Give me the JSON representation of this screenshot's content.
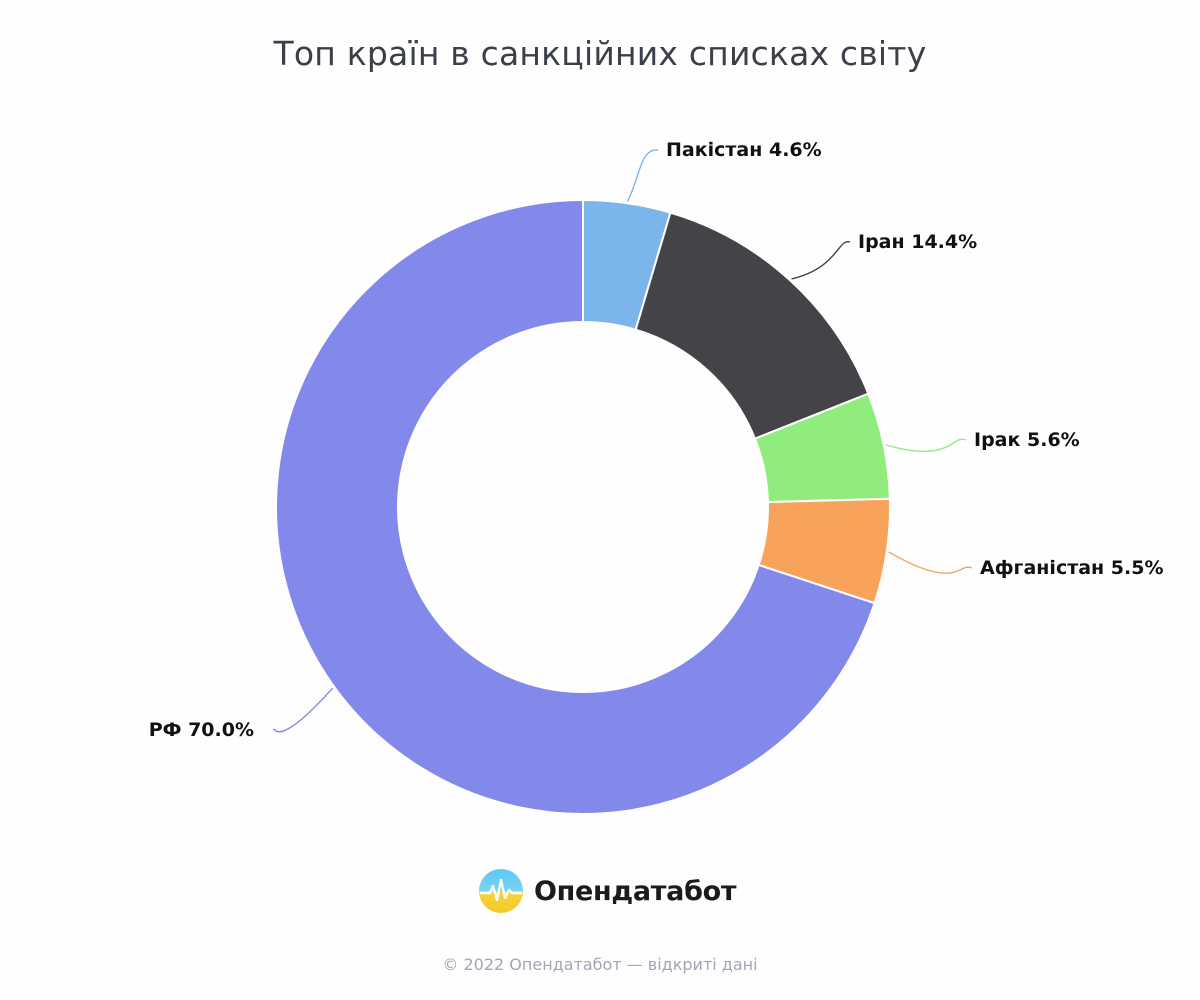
{
  "chart_data": {
    "type": "pie",
    "title": "Топ країн в санкційних списках світу",
    "slices": [
      {
        "label": "Пакістан",
        "value": 4.6,
        "value_text": "4.6%",
        "color": "#7cb5ec"
      },
      {
        "label": "Іран",
        "value": 14.4,
        "value_text": "14.4%",
        "color": "#434348"
      },
      {
        "label": "Ірак",
        "value": 5.6,
        "value_text": "5.6%",
        "color": "#90ed7d"
      },
      {
        "label": "Афганістан",
        "value": 5.5,
        "value_text": "5.5%",
        "color": "#f7a35c"
      },
      {
        "label": "РФ",
        "value": 70.0,
        "value_text": "70.0%",
        "color": "#8389ea"
      }
    ],
    "donut": true,
    "legend": "none",
    "data_labels": "outside with connector lines"
  },
  "brand": {
    "name": "Опендатабот",
    "logo_icon": "sun-heartbeat-logo-icon",
    "logo_colors": [
      "#5bc8f5",
      "#f5d53b"
    ]
  },
  "footer": {
    "text": "© 2022 Опендатабот — відкриті дані"
  }
}
